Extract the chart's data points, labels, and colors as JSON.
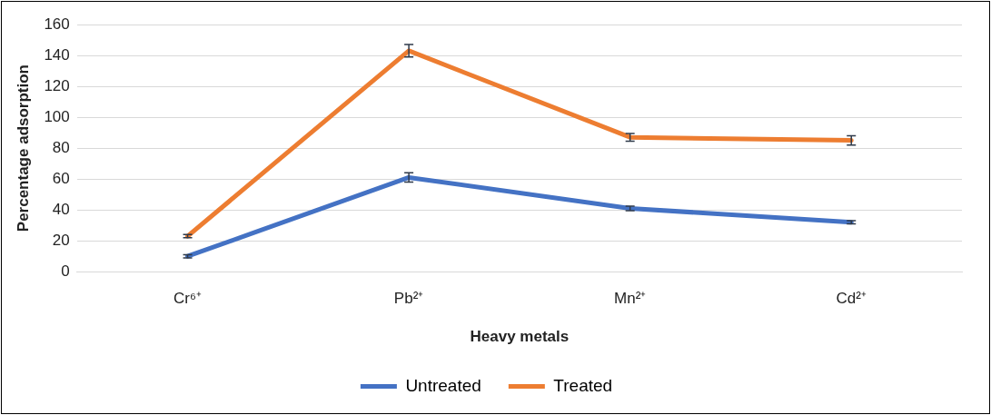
{
  "chart_data": {
    "type": "line",
    "xlabel": "Heavy metals",
    "ylabel": "Percentage adsorption",
    "categories": [
      "Cr⁶⁺",
      "Pb²⁺",
      "Mn²⁺",
      "Cd²⁺"
    ],
    "series": [
      {
        "name": "Untreated",
        "color": "#4472c4",
        "values": [
          10,
          61,
          41,
          32
        ],
        "errors": [
          1,
          3,
          1.5,
          1
        ]
      },
      {
        "name": "Treated",
        "color": "#ed7d31",
        "values": [
          23,
          143,
          87,
          85
        ],
        "errors": [
          1,
          4,
          2.5,
          3
        ]
      }
    ],
    "ylim": [
      0,
      160
    ],
    "yticks": [
      0,
      20,
      40,
      60,
      80,
      100,
      120,
      140,
      160
    ],
    "grid": "y",
    "legend": "bottom",
    "line_style": "solid"
  }
}
